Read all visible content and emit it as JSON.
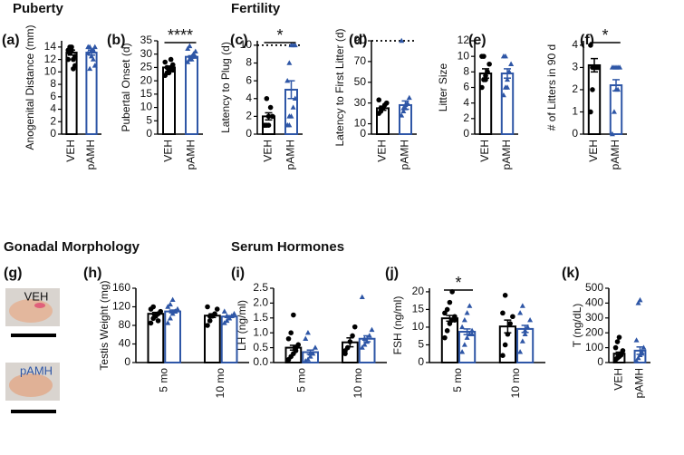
{
  "sections": [
    "Puberty",
    "Fertility",
    "Gonadal Morphology",
    "Serum Hormones"
  ],
  "photo_panel": {
    "label": "(g)",
    "captions": [
      "VEH",
      "pAMH"
    ]
  },
  "chart_data": [
    {
      "type": "bar",
      "panel": "(a)",
      "y_label": "Anogenital Distance (mm)",
      "categories": [
        "VEH",
        "pAMH"
      ],
      "values": [
        13.1,
        13.1
      ],
      "errors": [
        0.4,
        0.4
      ],
      "colors": [
        "#000000",
        "#2e56a6"
      ],
      "markers": [
        "circle",
        "triangle"
      ],
      "points": [
        [
          13.5,
          14,
          14,
          12,
          11,
          12,
          13,
          13.5,
          10.5,
          12.5
        ],
        [
          14,
          14,
          13.5,
          12,
          11,
          13,
          10.5,
          12.5,
          13.5,
          14
        ]
      ],
      "ylim": [
        0,
        15
      ],
      "yticks": [
        0,
        2,
        4,
        6,
        8,
        10,
        12,
        14
      ]
    },
    {
      "type": "bar",
      "panel": "(b)",
      "y_label": "Pubertal Onset (d)",
      "categories": [
        "VEH",
        "pAMH"
      ],
      "values": [
        25,
        29
      ],
      "errors": [
        0.5,
        0.4
      ],
      "colors": [
        "#000000",
        "#2e56a6"
      ],
      "markers": [
        "circle",
        "triangle"
      ],
      "points": [
        [
          22,
          23,
          24,
          25,
          26,
          27,
          25,
          23,
          28,
          24
        ],
        [
          27,
          28,
          29,
          30,
          31,
          32,
          33,
          28,
          30,
          29
        ]
      ],
      "ylim": [
        0,
        35
      ],
      "yticks": [
        0,
        5,
        10,
        15,
        20,
        25,
        30,
        35
      ],
      "significance": "****"
    },
    {
      "type": "bar",
      "panel": "(c)",
      "y_label": "Latency to Plug (d)",
      "categories": [
        "VEH",
        "pAMH"
      ],
      "values": [
        2,
        5
      ],
      "errors": [
        0.4,
        1
      ],
      "colors": [
        "#000000",
        "#2e56a6"
      ],
      "markers": [
        "circle",
        "triangle"
      ],
      "points": [
        [
          1,
          1,
          2,
          3,
          2,
          1,
          4,
          1
        ],
        [
          1,
          1,
          2,
          3,
          4,
          6,
          8,
          10,
          10,
          10,
          1,
          2
        ]
      ],
      "ylim": [
        0,
        10.5
      ],
      "yticks": [
        0,
        2,
        4,
        6,
        8,
        10
      ],
      "reference_line": 10,
      "significance": "*"
    },
    {
      "type": "bar",
      "panel": "(d)",
      "y_label": "Latency to First Litter (d)",
      "categories": [
        "VEH",
        "pAMH"
      ],
      "values": [
        25,
        28
      ],
      "errors": [
        2,
        4
      ],
      "colors": [
        "#000000",
        "#2e56a6"
      ],
      "markers": [
        "circle",
        "triangle"
      ],
      "points": [
        [
          20,
          22,
          25,
          28,
          30,
          33,
          25
        ],
        [
          18,
          22,
          25,
          30,
          35,
          90,
          25,
          28
        ]
      ],
      "ylim": [
        0,
        90
      ],
      "yticks": [
        0,
        10,
        30,
        50,
        70,
        90
      ],
      "reference_line": 90
    },
    {
      "type": "bar",
      "panel": "(e)",
      "y_label": "Litter Size",
      "categories": [
        "VEH",
        "pAMH"
      ],
      "values": [
        7.8,
        7.8
      ],
      "errors": [
        0.6,
        0.6
      ],
      "colors": [
        "#000000",
        "#2e56a6"
      ],
      "markers": [
        "circle",
        "triangle"
      ],
      "points": [
        [
          6,
          7,
          7.5,
          8,
          9,
          10,
          10,
          7
        ],
        [
          5,
          6,
          7,
          8,
          9,
          10,
          10,
          6,
          8
        ]
      ],
      "ylim": [
        0,
        12
      ],
      "yticks": [
        0,
        2,
        4,
        6,
        8,
        10,
        12
      ]
    },
    {
      "type": "bar",
      "panel": "(f)",
      "y_label": "# of Litters in 90 d",
      "categories": [
        "VEH",
        "pAMH"
      ],
      "values": [
        3.1,
        2.2
      ],
      "errors": [
        0.3,
        0.25
      ],
      "colors": [
        "#000000",
        "#2e56a6"
      ],
      "markers": [
        "circle",
        "triangle"
      ],
      "points": [
        [
          1,
          2,
          3,
          3,
          3,
          4,
          3,
          3
        ],
        [
          0,
          1,
          2,
          2,
          3,
          3,
          3,
          3,
          3
        ]
      ],
      "ylim": [
        0,
        4.2
      ],
      "yticks": [
        0,
        1,
        2,
        3,
        4
      ],
      "significance": "*"
    },
    {
      "type": "grouped_bar",
      "panel": "(h)",
      "y_label": "Testis Weight (mg)",
      "categories": [
        "5 mo",
        "10 mo"
      ],
      "series": [
        {
          "color": "#000000",
          "marker": "circle",
          "values": [
            105,
            101
          ],
          "errors": [
            3,
            4
          ],
          "points": [
            [
              85,
              95,
              100,
              105,
              110,
              115,
              120,
              100,
              90
            ],
            [
              80,
              90,
              100,
              105,
              115,
              120,
              100
            ]
          ]
        },
        {
          "color": "#2e56a6",
          "marker": "triangle",
          "values": [
            110,
            99
          ],
          "errors": [
            3,
            2
          ],
          "points": [
            [
              85,
              95,
              105,
              110,
              115,
              120,
              125,
              135,
              110
            ],
            [
              85,
              90,
              95,
              100,
              105,
              110,
              100,
              95
            ]
          ]
        }
      ],
      "ylim": [
        0,
        160
      ],
      "yticks": [
        0,
        40,
        80,
        120,
        160
      ]
    },
    {
      "type": "grouped_bar",
      "panel": "(i)",
      "y_label": "LH (ng/ml)",
      "categories": [
        "5 mo",
        "10 mo"
      ],
      "series": [
        {
          "color": "#000000",
          "marker": "circle",
          "values": [
            0.5,
            0.68
          ],
          "errors": [
            0.08,
            0.15
          ],
          "points": [
            [
              0.1,
              0.2,
              0.3,
              0.5,
              0.6,
              0.8,
              1.0,
              1.6,
              0.4
            ],
            [
              0.3,
              0.5,
              0.7,
              0.9,
              1.2,
              0.4
            ]
          ]
        },
        {
          "color": "#2e56a6",
          "marker": "triangle",
          "values": [
            0.35,
            0.8
          ],
          "errors": [
            0.07,
            0.1
          ],
          "points": [
            [
              0.05,
              0.1,
              0.2,
              0.3,
              0.5,
              0.8,
              1.0,
              0.3
            ],
            [
              0.5,
              0.6,
              0.7,
              0.9,
              1.1,
              2.2,
              0.8
            ]
          ]
        }
      ],
      "ylim": [
        0,
        2.5
      ],
      "yticks": [
        {
          "value": 0,
          "label": "0.0"
        },
        0.5,
        {
          "value": 1,
          "label": "1.0"
        },
        1.5,
        {
          "value": 2,
          "label": "2.0"
        },
        2.5
      ]
    },
    {
      "type": "grouped_bar",
      "panel": "(j)",
      "y_label": "FSH (ng/ml)",
      "categories": [
        "5 mo",
        "10 mo"
      ],
      "series": [
        {
          "color": "#000000",
          "marker": "circle",
          "values": [
            12.5,
            10.2
          ],
          "errors": [
            0.8,
            1.8
          ],
          "points": [
            [
              7,
              9,
              11,
              12,
              13,
              14,
              15,
              17,
              20,
              12
            ],
            [
              2,
              5,
              8,
              11,
              13,
              14,
              19
            ]
          ]
        },
        {
          "color": "#2e56a6",
          "marker": "triangle",
          "values": [
            8.7,
            9.5
          ],
          "errors": [
            0.8,
            1
          ],
          "points": [
            [
              3,
              5,
              7,
              8,
              9,
              10,
              12,
              14,
              16,
              8
            ],
            [
              3,
              6,
              8,
              10,
              12,
              14,
              16,
              9
            ]
          ]
        }
      ],
      "ylim": [
        0,
        21
      ],
      "yticks": [
        0,
        5,
        10,
        15,
        20
      ],
      "significance": "*"
    },
    {
      "type": "bar",
      "panel": "(k)",
      "y_label": "T (ng/dL)",
      "categories": [
        "VEH",
        "pAMH"
      ],
      "values": [
        60,
        80
      ],
      "errors": [
        10,
        25
      ],
      "colors": [
        "#000000",
        "#2e56a6"
      ],
      "markers": [
        "circle",
        "triangle"
      ],
      "points": [
        [
          20,
          30,
          40,
          60,
          80,
          100,
          140,
          170,
          50
        ],
        [
          10,
          30,
          50,
          70,
          100,
          150,
          400,
          420,
          60
        ]
      ],
      "ylim": [
        0,
        500
      ],
      "yticks": [
        0,
        100,
        200,
        300,
        400,
        500
      ]
    }
  ]
}
